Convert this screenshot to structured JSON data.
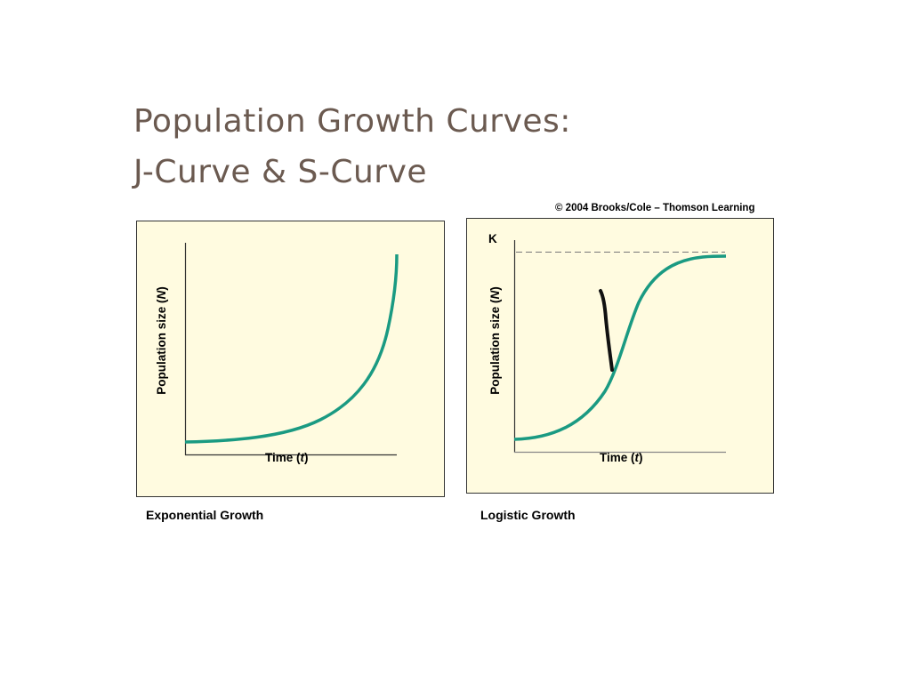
{
  "title": {
    "line1": "Population Growth Curves:",
    "line2": "J-Curve & S-Curve"
  },
  "copyright": "© 2004 Brooks/Cole – Thomson Learning",
  "colors": {
    "title": "#6b5a50",
    "panel_bg": "#fffbe0",
    "curve": "#1a9a82",
    "annotation": "#111111",
    "dashed_line": "#777777"
  },
  "panels": {
    "left": {
      "caption": "Exponential Growth",
      "xlabel": "Time (t)",
      "ylabel": "Population size (N)"
    },
    "right": {
      "caption": "Logistic Growth",
      "xlabel": "Time (t)",
      "ylabel": "Population size (N)",
      "k_label": "K"
    }
  },
  "chart_data": [
    {
      "type": "line",
      "title": "Exponential Growth",
      "subtitle": "J-Curve",
      "xlabel": "Time (t)",
      "ylabel": "Population size (N)",
      "x": [
        0,
        0.2,
        0.4,
        0.55,
        0.7,
        0.8,
        0.9,
        0.95,
        1.0
      ],
      "series": [
        {
          "name": "Exponential growth",
          "values": [
            0.06,
            0.07,
            0.1,
            0.15,
            0.24,
            0.33,
            0.5,
            0.66,
            0.95
          ]
        }
      ],
      "grid": false,
      "ticks": false,
      "legend": null
    },
    {
      "type": "line",
      "title": "Logistic Growth",
      "subtitle": "S-Curve",
      "xlabel": "Time (t)",
      "ylabel": "Population size (N)",
      "x": [
        0,
        0.15,
        0.3,
        0.4,
        0.5,
        0.6,
        0.75,
        0.9,
        1.0
      ],
      "series": [
        {
          "name": "Logistic growth",
          "values": [
            0.06,
            0.09,
            0.2,
            0.37,
            0.62,
            0.8,
            0.9,
            0.94,
            0.95
          ]
        }
      ],
      "annotations": [
        {
          "type": "hline",
          "label": "K",
          "y": 0.98,
          "style": "dashed"
        },
        {
          "type": "hand-drawn-mark",
          "color": "#111111",
          "description": "black pen stroke near inflection point"
        }
      ],
      "grid": false,
      "ticks": false,
      "legend": null
    }
  ]
}
